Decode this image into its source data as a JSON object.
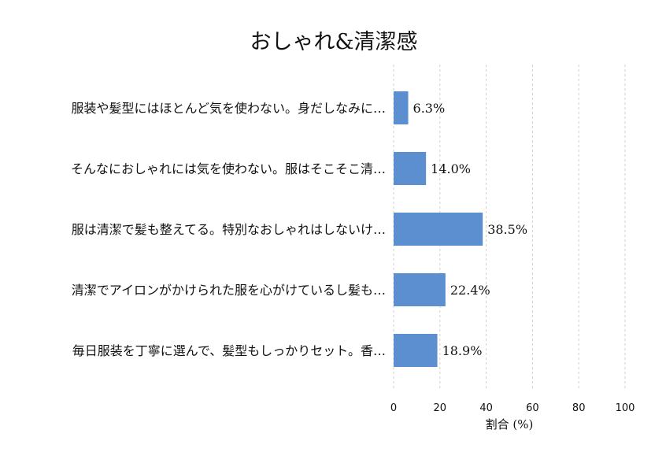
{
  "chart_data": {
    "type": "bar",
    "orientation": "horizontal",
    "title": "おしゃれ&清潔感",
    "xlabel": "割合 (%)",
    "ylabel": "",
    "xlim": [
      0,
      100
    ],
    "xticks": [
      0,
      20,
      40,
      60,
      80,
      100
    ],
    "grid": "vertical-dashed",
    "bar_color": "#5b8fd0",
    "categories": [
      "服装や髪型にはほとんど気を使わない。身だしなみに…",
      "そんなにおしゃれには気を使わない。服はそこそこ清…",
      "服は清潔で髪も整えてる。特別なおしゃれはしないけ…",
      "清潔でアイロンがかけられた服を心がけているし髪も…",
      "毎日服装を丁寧に選んで、髪型もしっかりセット。香…"
    ],
    "values": [
      6.3,
      14.0,
      38.5,
      22.4,
      18.9
    ],
    "value_labels": [
      "6.3%",
      "14.0%",
      "38.5%",
      "22.4%",
      "18.9%"
    ]
  }
}
